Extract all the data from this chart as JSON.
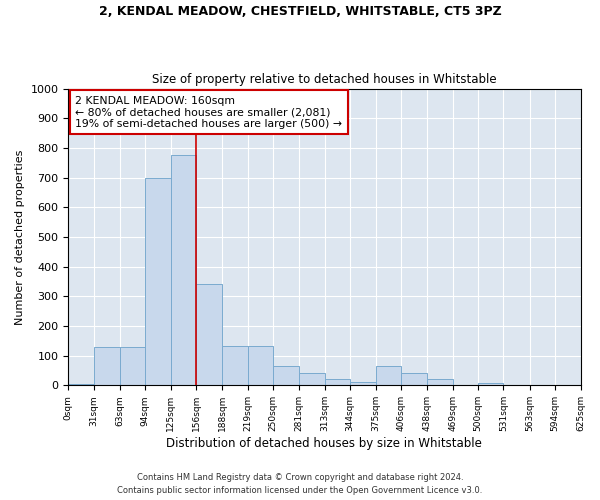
{
  "title1": "2, KENDAL MEADOW, CHESTFIELD, WHITSTABLE, CT5 3PZ",
  "title2": "Size of property relative to detached houses in Whitstable",
  "xlabel": "Distribution of detached houses by size in Whitstable",
  "ylabel": "Number of detached properties",
  "bin_edges": [
    0,
    31,
    63,
    94,
    125,
    156,
    188,
    219,
    250,
    281,
    313,
    344,
    375,
    406,
    438,
    469,
    500,
    531,
    563,
    594,
    625
  ],
  "bar_heights": [
    5,
    128,
    128,
    700,
    775,
    340,
    133,
    133,
    65,
    40,
    20,
    10,
    65,
    40,
    20,
    0,
    8,
    0,
    0,
    0
  ],
  "bar_color": "#c8d8ec",
  "bar_edge_color": "#7aaacf",
  "property_line_x": 156,
  "property_line_color": "#cc0000",
  "annotation_text": "2 KENDAL MEADOW: 160sqm\n← 80% of detached houses are smaller (2,081)\n19% of semi-detached houses are larger (500) →",
  "annotation_box_color": "#cc0000",
  "ylim": [
    0,
    1000
  ],
  "yticks": [
    0,
    100,
    200,
    300,
    400,
    500,
    600,
    700,
    800,
    900,
    1000
  ],
  "bg_color": "#dde6f0",
  "footer1": "Contains HM Land Registry data © Crown copyright and database right 2024.",
  "footer2": "Contains public sector information licensed under the Open Government Licence v3.0.",
  "tick_labels": [
    "0sqm",
    "31sqm",
    "63sqm",
    "94sqm",
    "125sqm",
    "156sqm",
    "188sqm",
    "219sqm",
    "250sqm",
    "281sqm",
    "313sqm",
    "344sqm",
    "375sqm",
    "406sqm",
    "438sqm",
    "469sqm",
    "500sqm",
    "531sqm",
    "563sqm",
    "594sqm",
    "625sqm"
  ]
}
